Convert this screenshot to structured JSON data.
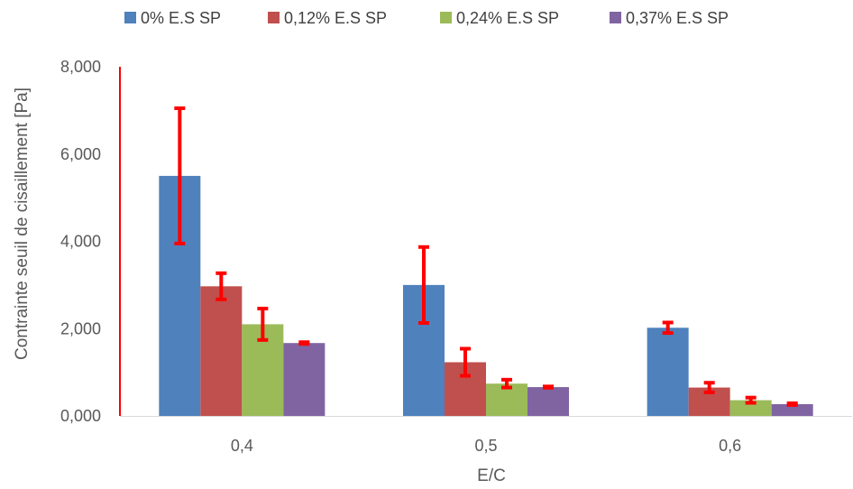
{
  "chart_data": {
    "type": "bar",
    "title": "",
    "xlabel": "E/C",
    "ylabel": "Contrainte seuil de cisaillement [Pa]",
    "categories": [
      "0,4",
      "0,5",
      "0,6"
    ],
    "ylim": [
      0,
      8000
    ],
    "yticks": [
      0,
      2000,
      4000,
      6000,
      8000
    ],
    "ytick_labels": [
      "0,000",
      "2,000",
      "4,000",
      "6,000",
      "8,000"
    ],
    "legend_position": "top",
    "grid": false,
    "error_bar_color": "#FF0000",
    "axis_color": "#FF0000",
    "series": [
      {
        "name": "0% E.S SP",
        "color": "#4F81BD",
        "values": [
          5500,
          3000,
          2020
        ],
        "error": [
          1550,
          870,
          120
        ]
      },
      {
        "name": "0,12% E.S SP",
        "color": "#C0504D",
        "values": [
          2970,
          1230,
          650
        ],
        "error": [
          300,
          310,
          110
        ]
      },
      {
        "name": "0,24% E.S SP",
        "color": "#9BBB59",
        "values": [
          2100,
          740,
          360
        ],
        "error": [
          360,
          90,
          60
        ]
      },
      {
        "name": "0,37% E.S SP",
        "color": "#8064A2",
        "values": [
          1670,
          660,
          270
        ],
        "error": [
          20,
          15,
          20
        ]
      }
    ]
  }
}
